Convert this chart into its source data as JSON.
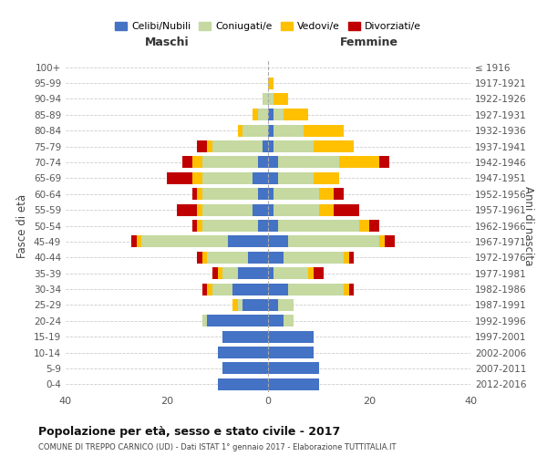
{
  "age_groups": [
    "0-4",
    "5-9",
    "10-14",
    "15-19",
    "20-24",
    "25-29",
    "30-34",
    "35-39",
    "40-44",
    "45-49",
    "50-54",
    "55-59",
    "60-64",
    "65-69",
    "70-74",
    "75-79",
    "80-84",
    "85-89",
    "90-94",
    "95-99",
    "100+"
  ],
  "birth_years": [
    "2012-2016",
    "2007-2011",
    "2002-2006",
    "1997-2001",
    "1992-1996",
    "1987-1991",
    "1982-1986",
    "1977-1981",
    "1972-1976",
    "1967-1971",
    "1962-1966",
    "1957-1961",
    "1952-1956",
    "1947-1951",
    "1942-1946",
    "1937-1941",
    "1932-1936",
    "1927-1931",
    "1922-1926",
    "1917-1921",
    "≤ 1916"
  ],
  "males": {
    "celibi": [
      10,
      9,
      10,
      9,
      12,
      5,
      7,
      6,
      4,
      8,
      2,
      3,
      2,
      3,
      2,
      1,
      0,
      0,
      0,
      0,
      0
    ],
    "coniugati": [
      0,
      0,
      0,
      0,
      1,
      1,
      4,
      3,
      8,
      17,
      11,
      10,
      11,
      10,
      11,
      10,
      5,
      2,
      1,
      0,
      0
    ],
    "vedovi": [
      0,
      0,
      0,
      0,
      0,
      1,
      1,
      1,
      1,
      1,
      1,
      1,
      1,
      2,
      2,
      1,
      1,
      1,
      0,
      0,
      0
    ],
    "divorziati": [
      0,
      0,
      0,
      0,
      0,
      0,
      1,
      1,
      1,
      1,
      1,
      4,
      1,
      5,
      2,
      2,
      0,
      0,
      0,
      0,
      0
    ]
  },
  "females": {
    "nubili": [
      10,
      10,
      9,
      9,
      3,
      2,
      4,
      1,
      3,
      4,
      2,
      1,
      1,
      2,
      2,
      1,
      1,
      1,
      0,
      0,
      0
    ],
    "coniugate": [
      0,
      0,
      0,
      0,
      2,
      3,
      11,
      7,
      12,
      18,
      16,
      9,
      9,
      7,
      12,
      8,
      6,
      2,
      1,
      0,
      0
    ],
    "vedove": [
      0,
      0,
      0,
      0,
      0,
      0,
      1,
      1,
      1,
      1,
      2,
      3,
      3,
      5,
      8,
      8,
      8,
      5,
      3,
      1,
      0
    ],
    "divorziate": [
      0,
      0,
      0,
      0,
      0,
      0,
      1,
      2,
      1,
      2,
      2,
      5,
      2,
      0,
      2,
      0,
      0,
      0,
      0,
      0,
      0
    ]
  },
  "colors": {
    "celibi": "#4472c4",
    "coniugati": "#c5d9a0",
    "vedovi": "#ffc000",
    "divorziati": "#c00000"
  },
  "title": "Popolazione per età, sesso e stato civile - 2017",
  "subtitle": "COMUNE DI TREPPO CARNICO (UD) - Dati ISTAT 1° gennaio 2017 - Elaborazione TUTTITALIA.IT",
  "xlabel_left": "Maschi",
  "xlabel_right": "Femmine",
  "ylabel_left": "Fasce di età",
  "ylabel_right": "Anni di nascita",
  "xlim": 40,
  "legend_labels": [
    "Celibi/Nubili",
    "Coniugati/e",
    "Vedovi/e",
    "Divorziati/e"
  ],
  "background_color": "#ffffff",
  "grid_color": "#cccccc"
}
